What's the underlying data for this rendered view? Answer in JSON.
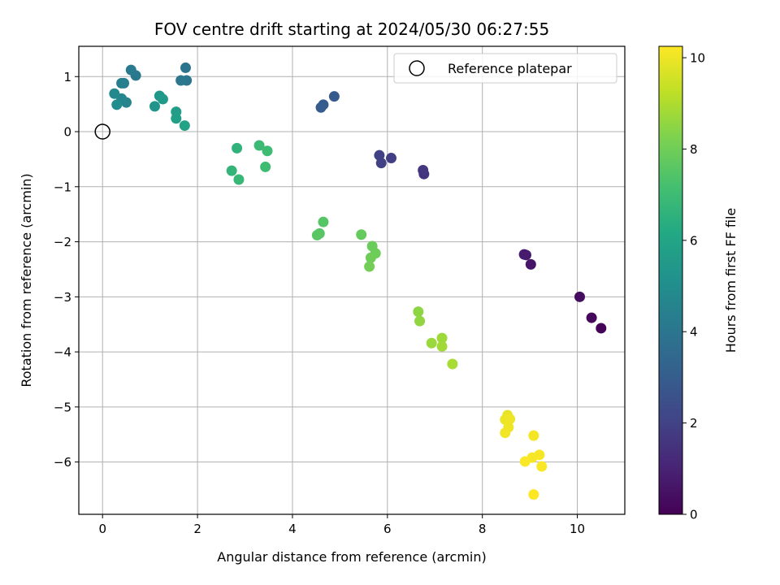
{
  "chart_data": {
    "type": "scatter",
    "title": "FOV centre drift starting at 2024/05/30 06:27:55",
    "xlabel": "Angular distance from reference (arcmin)",
    "ylabel": "Rotation from reference (arcmin)",
    "xlim": [
      -0.5,
      11.0
    ],
    "ylim": [
      -6.95,
      1.55
    ],
    "xticks": [
      0,
      2,
      4,
      6,
      8,
      10
    ],
    "yticks": [
      1,
      0,
      -1,
      -2,
      -3,
      -4,
      -5,
      -6
    ],
    "xtick_labels": [
      "0",
      "2",
      "4",
      "6",
      "8",
      "10"
    ],
    "ytick_labels": [
      "1",
      "0",
      "−1",
      "−2",
      "−3",
      "−4",
      "−5",
      "−6"
    ],
    "grid": true,
    "legend": {
      "position": "top-right",
      "entries": [
        {
          "label": "Reference platepar",
          "marker": "hollow-circle"
        }
      ]
    },
    "reference_point": {
      "x": 0.0,
      "y": 0.0
    },
    "colorbar": {
      "label": "Hours from first FF file",
      "range": [
        0,
        10.25
      ],
      "ticks": [
        0,
        2,
        4,
        6,
        8,
        10
      ],
      "tick_labels": [
        "0",
        "2",
        "4",
        "6",
        "8",
        "10"
      ],
      "colormap": "viridis"
    },
    "points": [
      {
        "x": 10.5,
        "y": -3.57,
        "c": 0.1
      },
      {
        "x": 10.3,
        "y": -3.38,
        "c": 0.2
      },
      {
        "x": 10.05,
        "y": -3.0,
        "c": 0.35
      },
      {
        "x": 9.02,
        "y": -2.41,
        "c": 0.6
      },
      {
        "x": 8.92,
        "y": -2.24,
        "c": 0.75
      },
      {
        "x": 8.88,
        "y": -2.23,
        "c": 0.8
      },
      {
        "x": 6.77,
        "y": -0.77,
        "c": 1.5
      },
      {
        "x": 6.75,
        "y": -0.7,
        "c": 1.6
      },
      {
        "x": 6.08,
        "y": -0.48,
        "c": 1.9
      },
      {
        "x": 5.87,
        "y": -0.57,
        "c": 1.95
      },
      {
        "x": 5.83,
        "y": -0.43,
        "c": 2.0
      },
      {
        "x": 4.88,
        "y": 0.64,
        "c": 2.9
      },
      {
        "x": 4.65,
        "y": 0.49,
        "c": 2.95
      },
      {
        "x": 4.6,
        "y": 0.44,
        "c": 3.0
      },
      {
        "x": 1.75,
        "y": 1.16,
        "c": 3.95
      },
      {
        "x": 1.77,
        "y": 0.93,
        "c": 4.0
      },
      {
        "x": 1.65,
        "y": 0.93,
        "c": 4.05
      },
      {
        "x": 0.7,
        "y": 1.02,
        "c": 4.1
      },
      {
        "x": 0.6,
        "y": 1.12,
        "c": 4.2
      },
      {
        "x": 0.45,
        "y": 0.88,
        "c": 4.3
      },
      {
        "x": 0.4,
        "y": 0.88,
        "c": 4.4
      },
      {
        "x": 0.5,
        "y": 0.53,
        "c": 4.6
      },
      {
        "x": 0.4,
        "y": 0.6,
        "c": 4.7
      },
      {
        "x": 0.25,
        "y": 0.69,
        "c": 4.8
      },
      {
        "x": 0.3,
        "y": 0.49,
        "c": 4.9
      },
      {
        "x": 1.1,
        "y": 0.46,
        "c": 5.3
      },
      {
        "x": 1.2,
        "y": 0.65,
        "c": 5.4
      },
      {
        "x": 1.27,
        "y": 0.59,
        "c": 5.5
      },
      {
        "x": 1.55,
        "y": 0.36,
        "c": 5.7
      },
      {
        "x": 1.55,
        "y": 0.24,
        "c": 5.8
      },
      {
        "x": 1.73,
        "y": 0.11,
        "c": 5.9
      },
      {
        "x": 2.83,
        "y": -0.3,
        "c": 6.6
      },
      {
        "x": 2.72,
        "y": -0.71,
        "c": 6.7
      },
      {
        "x": 2.87,
        "y": -0.87,
        "c": 6.8
      },
      {
        "x": 3.3,
        "y": -0.25,
        "c": 6.9
      },
      {
        "x": 3.47,
        "y": -0.35,
        "c": 7.0
      },
      {
        "x": 3.43,
        "y": -0.64,
        "c": 7.05
      },
      {
        "x": 4.65,
        "y": -1.64,
        "c": 7.5
      },
      {
        "x": 4.57,
        "y": -1.85,
        "c": 7.55
      },
      {
        "x": 4.52,
        "y": -1.88,
        "c": 7.6
      },
      {
        "x": 5.45,
        "y": -1.87,
        "c": 7.8
      },
      {
        "x": 5.68,
        "y": -2.08,
        "c": 7.9
      },
      {
        "x": 5.75,
        "y": -2.21,
        "c": 7.95
      },
      {
        "x": 5.65,
        "y": -2.29,
        "c": 8.0
      },
      {
        "x": 5.62,
        "y": -2.45,
        "c": 8.05
      },
      {
        "x": 6.65,
        "y": -3.27,
        "c": 8.5
      },
      {
        "x": 6.68,
        "y": -3.44,
        "c": 8.55
      },
      {
        "x": 6.93,
        "y": -3.84,
        "c": 8.7
      },
      {
        "x": 7.15,
        "y": -3.75,
        "c": 8.75
      },
      {
        "x": 7.15,
        "y": -3.9,
        "c": 8.8
      },
      {
        "x": 7.37,
        "y": -4.22,
        "c": 8.9
      },
      {
        "x": 8.53,
        "y": -5.15,
        "c": 9.9
      },
      {
        "x": 8.48,
        "y": -5.23,
        "c": 9.95
      },
      {
        "x": 8.58,
        "y": -5.22,
        "c": 10.0
      },
      {
        "x": 8.55,
        "y": -5.37,
        "c": 10.0
      },
      {
        "x": 8.48,
        "y": -5.47,
        "c": 10.05
      },
      {
        "x": 9.08,
        "y": -5.52,
        "c": 10.1
      },
      {
        "x": 9.2,
        "y": -5.87,
        "c": 10.15
      },
      {
        "x": 9.05,
        "y": -5.92,
        "c": 10.15
      },
      {
        "x": 8.9,
        "y": -5.99,
        "c": 10.2
      },
      {
        "x": 9.25,
        "y": -6.08,
        "c": 10.2
      },
      {
        "x": 9.08,
        "y": -6.59,
        "c": 10.25
      }
    ]
  }
}
